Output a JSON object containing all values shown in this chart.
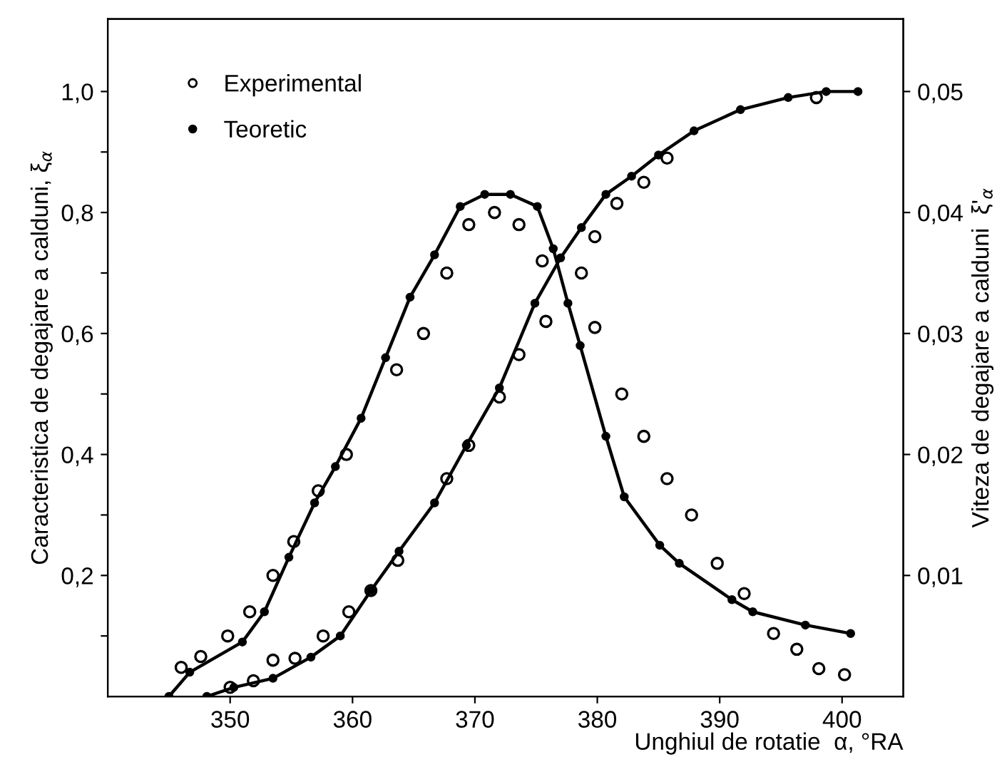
{
  "chart_data": {
    "type": "line",
    "xlabel": "Unghiul de rotatie  α, °RA",
    "ylabel": "Caracteristica de degajare a calduni, ξ$_{α}$",
    "y2label": "Viteza de degajare a calduni  ξ'$_{α}$",
    "xlim": [
      340,
      405
    ],
    "xticks": [
      350,
      360,
      370,
      380,
      390,
      400
    ],
    "ylim": [
      0,
      1.12
    ],
    "yticks": [
      {
        "value": 0.1,
        "label": null
      },
      {
        "value": 0.2,
        "label": "0,2"
      },
      {
        "value": 0.3,
        "label": null
      },
      {
        "value": 0.4,
        "label": "0,4"
      },
      {
        "value": 0.5,
        "label": null
      },
      {
        "value": 0.6,
        "label": "0,6"
      },
      {
        "value": 0.7,
        "label": null
      },
      {
        "value": 0.8,
        "label": "0,8"
      },
      {
        "value": 0.9,
        "label": null
      },
      {
        "value": 1.0,
        "label": "1,0"
      }
    ],
    "y2lim": [
      0,
      0.056
    ],
    "y2ticks": [
      {
        "value": 0.01,
        "label": "0,01"
      },
      {
        "value": 0.02,
        "label": "0,02"
      },
      {
        "value": 0.03,
        "label": "0,03"
      },
      {
        "value": 0.04,
        "label": "0,04"
      },
      {
        "value": 0.05,
        "label": "0,05"
      }
    ],
    "legend": "top left",
    "grid": false,
    "series": [
      {
        "name": "Experimental",
        "type": "scatter",
        "marker": "circle",
        "color": "#000000",
        "axis": "y2",
        "x": [
          346,
          347.6,
          349.8,
          351.6,
          353.5,
          355.2,
          357.2,
          359.5,
          363.6,
          365.8,
          367.7,
          369.5,
          371.6,
          373.6,
          375.5,
          375.8,
          379.8,
          382,
          383.8,
          385.7,
          387.7,
          389.8,
          392,
          394.4,
          396.3,
          398.1,
          400.2
        ],
        "values": [
          0.0024,
          0.0033,
          0.005,
          0.007,
          0.01,
          0.0128,
          0.017,
          0.02,
          0.027,
          0.03,
          0.035,
          0.039,
          0.04,
          0.039,
          0.036,
          0.031,
          0.0305,
          0.025,
          0.0215,
          0.018,
          0.015,
          0.011,
          0.0085,
          0.0052,
          0.0039,
          0.0023,
          0.0018
        ]
      },
      {
        "name": "Teoretic",
        "marker": "circle",
        "color": "#000000",
        "axis": "y2",
        "x": [
          345,
          346.7,
          351,
          352.8,
          354.8,
          356.9,
          358.6,
          360.7,
          362.7,
          364.7,
          366.7,
          368.8,
          370.8,
          372.9,
          375.1,
          376.4,
          377.6,
          378.6,
          380.7,
          382.2,
          385.1,
          386.7,
          391,
          392.7,
          397,
          400.7
        ],
        "values": [
          0,
          0.002,
          0.0045,
          0.007,
          0.0115,
          0.016,
          0.019,
          0.023,
          0.028,
          0.033,
          0.0365,
          0.0405,
          0.0415,
          0.0415,
          0.0405,
          0.037,
          0.0325,
          0.029,
          0.0215,
          0.0165,
          0.0125,
          0.011,
          0.008,
          0.007,
          0.0059,
          0.0052
        ]
      },
      {
        "type": "scatter",
        "marker": "circle",
        "color": "#000000",
        "x": [
          350,
          351.9,
          353.5,
          355.3,
          357.6,
          359.7,
          361.5,
          363.7,
          367.7,
          369.5,
          372,
          373.6,
          378.7,
          379.8,
          381.6,
          383.8,
          385.7,
          397.9
        ],
        "values": [
          0.015,
          0.026,
          0.06,
          0.063,
          0.1,
          0.14,
          0.175,
          0.225,
          0.36,
          0.415,
          0.495,
          0.565,
          0.7,
          0.76,
          0.815,
          0.85,
          0.89,
          0.99
        ]
      },
      {
        "marker": "circle",
        "color": "#000000",
        "x": [
          348.1,
          350.3,
          353.5,
          356.6,
          359,
          361.5,
          363.8,
          366.7,
          369.3,
          372,
          374.9,
          377,
          378.7,
          380.7,
          382.8,
          385,
          387.9,
          391.7,
          395.6,
          398.7,
          401.3
        ],
        "values": [
          0,
          0.015,
          0.03,
          0.065,
          0.1,
          0.175,
          0.24,
          0.32,
          0.415,
          0.51,
          0.65,
          0.725,
          0.775,
          0.83,
          0.86,
          0.895,
          0.935,
          0.97,
          0.99,
          1.0,
          1.0
        ]
      }
    ]
  }
}
